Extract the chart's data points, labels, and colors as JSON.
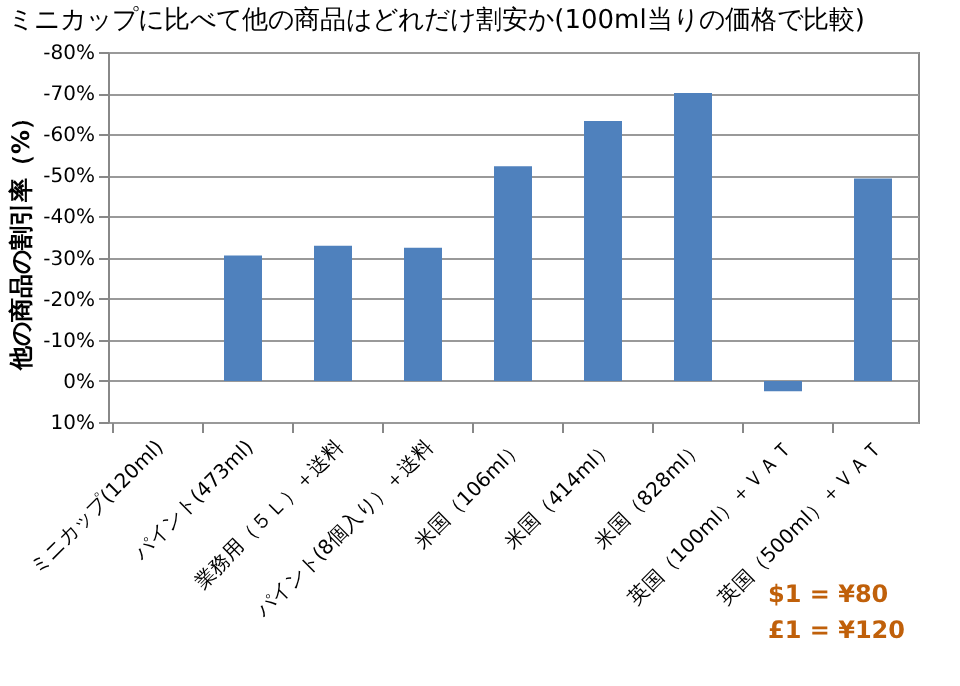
{
  "chart_data": {
    "type": "bar",
    "title": "ミニカップに比べて他の商品はどれだけ割安か(100ml当りの価格で比較)",
    "ylabel": "他の商品の割引率（%）",
    "categories": [
      "ミニカップ(120ml)",
      "パイント(473ml)",
      "業務用（５Ｌ）＋送料",
      "パイント(8個入り）＋送料",
      "米国（106ml）",
      "米国（414ml）",
      "米国（828ml）",
      "英国（100ml）＋ＶＡＴ",
      "英国（500ml）＋ＶＡＴ"
    ],
    "values": [
      0,
      -30.5,
      -32.9,
      -32.4,
      -52.2,
      -63.2,
      -70,
      2.5,
      -49.2
    ],
    "color": "#4f81bd",
    "ylim": [
      10,
      -80
    ],
    "yticks": [
      {
        "value": 10,
        "label": "10%"
      },
      {
        "value": 0,
        "label": "0%"
      },
      {
        "value": -10,
        "label": "-10%"
      },
      {
        "value": -20,
        "label": "-20%"
      },
      {
        "value": -30,
        "label": "-30%"
      },
      {
        "value": -40,
        "label": "-40%"
      },
      {
        "value": -50,
        "label": "-50%"
      },
      {
        "value": -60,
        "label": "-60%"
      },
      {
        "value": -70,
        "label": "-70%"
      },
      {
        "value": -80,
        "label": "-80%"
      }
    ],
    "grid": "y",
    "annotations": [
      "$1 = ¥80",
      "£1 = ¥120"
    ]
  }
}
